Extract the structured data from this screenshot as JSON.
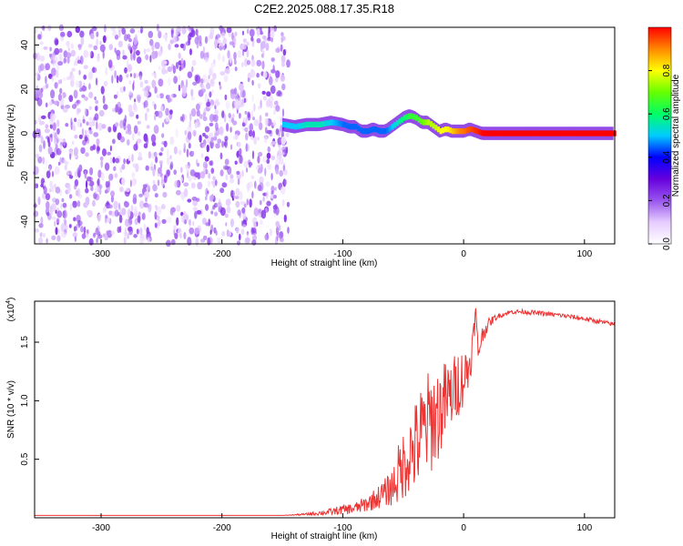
{
  "title": "C2E2.2025.088.17.35.R18",
  "chart_data": [
    {
      "type": "heatmap",
      "xlabel": "Height of straight line (km)",
      "ylabel": "Frequency (Hz)",
      "xlim": [
        -355,
        125
      ],
      "ylim": [
        -50,
        48
      ],
      "xticks": [
        -300,
        -200,
        -100,
        0,
        100
      ],
      "yticks": [
        -40,
        -20,
        0,
        20,
        40
      ],
      "colorbar": {
        "label": "Normalized spectral amplitude",
        "range": [
          0,
          1
        ],
        "ticks": [
          "0.0",
          "0.2",
          "0.4",
          "0.6",
          "0.8"
        ],
        "tick_values": [
          0,
          0.2,
          0.4,
          0.6,
          0.8
        ],
        "colors": [
          "#ffffff",
          "#e6ccff",
          "#9955ee",
          "#6600dd",
          "#0000ff",
          "#00ccff",
          "#00ff66",
          "#66ff00",
          "#ffff00",
          "#ff8800",
          "#ff0000"
        ]
      },
      "noise_region_x": [
        -355,
        -145
      ],
      "ridge": {
        "x": [
          -150,
          -140,
          -130,
          -120,
          -110,
          -100,
          -95,
          -90,
          -85,
          -80,
          -75,
          -70,
          -65,
          -60,
          -55,
          -50,
          -45,
          -40,
          -35,
          -30,
          -25,
          -20,
          -15,
          -10,
          -5,
          0,
          5,
          10,
          15,
          125
        ],
        "freq": [
          4,
          3,
          4,
          4,
          5,
          4,
          3,
          3,
          1,
          1,
          2,
          1,
          1,
          3,
          5,
          7,
          8,
          7,
          5,
          5,
          3,
          1,
          2,
          1,
          1,
          1,
          2,
          1,
          0,
          0
        ],
        "amplitude": [
          0.5,
          0.5,
          0.55,
          0.55,
          0.5,
          0.45,
          0.45,
          0.45,
          0.45,
          0.45,
          0.45,
          0.45,
          0.45,
          0.5,
          0.55,
          0.6,
          0.65,
          0.65,
          0.7,
          0.75,
          0.75,
          0.8,
          0.8,
          0.85,
          0.9,
          0.92,
          0.95,
          0.97,
          1.0,
          1.0
        ]
      }
    },
    {
      "type": "line",
      "xlabel": "Height of straight line (km)",
      "ylabel": "SNR (10 * v/v)",
      "yscale_label": "(x10",
      "yscale_exponent": "4",
      "xlim": [
        -355,
        125
      ],
      "ylim": [
        0,
        1.85
      ],
      "xticks": [
        -300,
        -200,
        -100,
        0,
        100
      ],
      "yticks": [
        0.5,
        1.0,
        1.5
      ],
      "ytick_labels": [
        "0.5",
        "1.0",
        "1.5"
      ],
      "color": "#ee3333",
      "series": [
        {
          "x": [
            -355,
            -200,
            -150,
            -130,
            -120,
            -110,
            -100,
            -90,
            -80,
            -70,
            -60,
            -55,
            -50,
            -45,
            -40,
            -35,
            -30,
            -25,
            -20,
            -15,
            -10,
            -5,
            0,
            5,
            8,
            10,
            12,
            15,
            20,
            25,
            30,
            40,
            50,
            60,
            80,
            100,
            125
          ],
          "values": [
            0.02,
            0.02,
            0.02,
            0.03,
            0.04,
            0.05,
            0.07,
            0.08,
            0.12,
            0.18,
            0.25,
            0.35,
            0.45,
            0.55,
            0.6,
            0.7,
            0.8,
            0.85,
            0.9,
            1.0,
            1.05,
            1.15,
            1.2,
            1.3,
            1.55,
            1.75,
            1.4,
            1.55,
            1.65,
            1.7,
            1.73,
            1.76,
            1.76,
            1.75,
            1.73,
            1.7,
            1.65
          ],
          "spread": [
            0,
            0,
            0,
            0.01,
            0.02,
            0.03,
            0.04,
            0.05,
            0.07,
            0.1,
            0.15,
            0.25,
            0.3,
            0.35,
            0.4,
            0.45,
            0.45,
            0.45,
            0.4,
            0.35,
            0.3,
            0.3,
            0.25,
            0.2,
            0.1,
            0.1,
            0.1,
            0.08,
            0.05,
            0.03,
            0.02,
            0.02,
            0.02,
            0.02,
            0.02,
            0.02,
            0.02
          ]
        }
      ]
    }
  ]
}
